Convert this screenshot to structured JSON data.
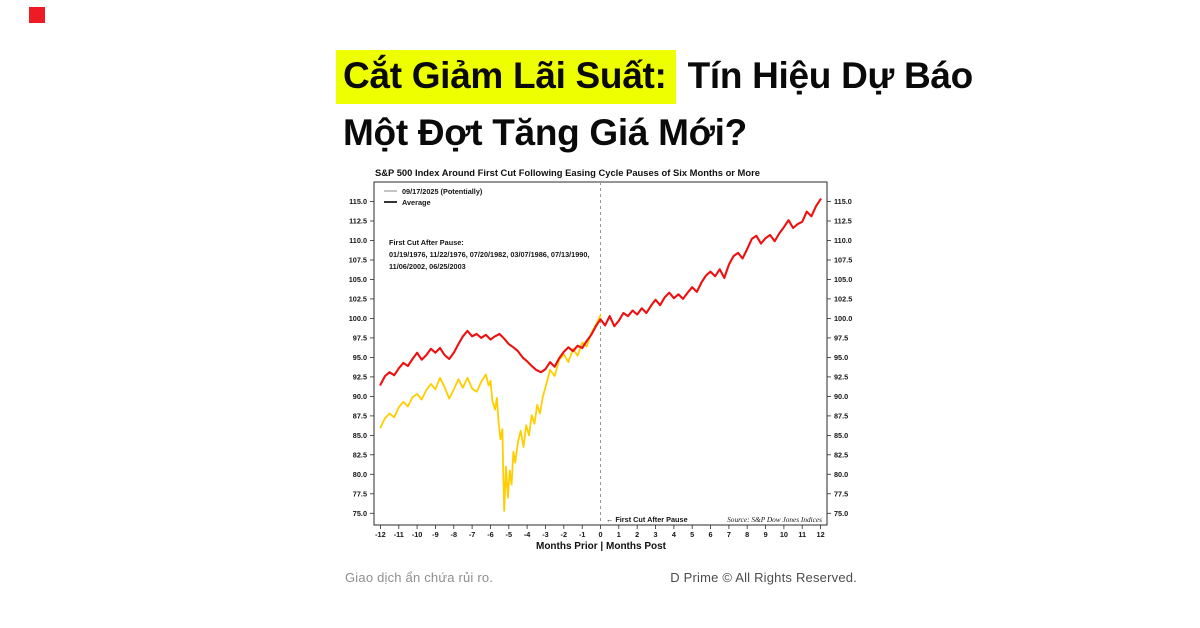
{
  "brand": {
    "logo_color": "#ed1c24"
  },
  "headline": {
    "highlight": "Cắt Giảm Lãi Suất:",
    "rest_line1": "Tín Hiệu Dự Báo",
    "line2": "Một Đợt Tăng Giá Mới?",
    "highlight_color": "#eeff00",
    "text_color": "#0a0a0a"
  },
  "footer": {
    "left": "Giao dịch ẩn chứa rủi ro.",
    "right": "D Prime © All Rights Reserved."
  },
  "chart_data": {
    "type": "line",
    "title": "S&P 500 Index Around First Cut Following Easing Cycle Pauses of Six Months or More",
    "xlabel": "Months Prior | Months Post",
    "ylabel": "",
    "grid": false,
    "legend_position": "top-left",
    "xlim": [
      -12.35,
      12.35
    ],
    "ylim": [
      73.5,
      117.5
    ],
    "xticks": [
      -12,
      -11,
      -10,
      -9,
      -8,
      -7,
      -6,
      -5,
      -4,
      -3,
      -2,
      -1,
      0,
      1,
      2,
      3,
      4,
      5,
      6,
      7,
      8,
      9,
      10,
      11,
      12
    ],
    "yticks": [
      75.0,
      77.5,
      80.0,
      82.5,
      85.0,
      87.5,
      90.0,
      92.5,
      95.0,
      97.5,
      100.0,
      102.5,
      105.0,
      107.5,
      110.0,
      112.5,
      115.0
    ],
    "vline_x": 0,
    "event_annotation": "←  First Cut After Pause",
    "source": "Source:  S&P Dow Jones Indices",
    "annotation": [
      "First Cut After Pause:",
      "01/19/1976, 11/22/1976, 07/20/1982, 03/07/1986, 07/13/1990,",
      "11/06/2002, 06/25/2003"
    ],
    "legend": [
      {
        "label": "09/17/2025 (Potentially)",
        "color": "#b5b5b5"
      },
      {
        "label": "Average",
        "color": "#1f1f1f"
      }
    ],
    "series": [
      {
        "name": "09/17/2025 (Potentially)",
        "color": "#ffce00",
        "width": 1.8,
        "points": [
          [
            -12,
            86
          ],
          [
            -11.75,
            87.2
          ],
          [
            -11.5,
            87.8
          ],
          [
            -11.25,
            87.3
          ],
          [
            -11,
            88.6
          ],
          [
            -10.75,
            89.3
          ],
          [
            -10.5,
            88.7
          ],
          [
            -10.25,
            89.9
          ],
          [
            -10,
            90.3
          ],
          [
            -9.75,
            89.6
          ],
          [
            -9.5,
            90.8
          ],
          [
            -9.25,
            91.6
          ],
          [
            -9,
            90.9
          ],
          [
            -8.75,
            92.4
          ],
          [
            -8.5,
            91.2
          ],
          [
            -8.25,
            89.7
          ],
          [
            -8,
            90.9
          ],
          [
            -7.75,
            92.2
          ],
          [
            -7.5,
            91.1
          ],
          [
            -7.25,
            92.4
          ],
          [
            -7,
            91
          ],
          [
            -6.75,
            90.6
          ],
          [
            -6.5,
            91.9
          ],
          [
            -6.25,
            92.8
          ],
          [
            -6.1,
            91.4
          ],
          [
            -6,
            92
          ],
          [
            -5.9,
            89.5
          ],
          [
            -5.75,
            88.3
          ],
          [
            -5.65,
            89.8
          ],
          [
            -5.55,
            86.5
          ],
          [
            -5.45,
            84.5
          ],
          [
            -5.35,
            85.8
          ],
          [
            -5.3,
            80
          ],
          [
            -5.25,
            75.3
          ],
          [
            -5.15,
            81
          ],
          [
            -5.05,
            77
          ],
          [
            -4.95,
            80.5
          ],
          [
            -4.85,
            78.7
          ],
          [
            -4.75,
            82.9
          ],
          [
            -4.65,
            81.5
          ],
          [
            -4.5,
            84.2
          ],
          [
            -4.35,
            85.6
          ],
          [
            -4.2,
            83.5
          ],
          [
            -4.05,
            86.3
          ],
          [
            -3.9,
            85
          ],
          [
            -3.75,
            87.6
          ],
          [
            -3.6,
            86.5
          ],
          [
            -3.45,
            88.9
          ],
          [
            -3.3,
            87.8
          ],
          [
            -3.15,
            89.9
          ],
          [
            -3,
            91.2
          ],
          [
            -2.75,
            93.4
          ],
          [
            -2.5,
            92.6
          ],
          [
            -2.25,
            94.7
          ],
          [
            -2,
            95.4
          ],
          [
            -1.75,
            94.4
          ],
          [
            -1.5,
            96.1
          ],
          [
            -1.25,
            95.2
          ],
          [
            -1,
            96.9
          ],
          [
            -0.75,
            96.4
          ],
          [
            -0.5,
            98.1
          ],
          [
            -0.25,
            99.2
          ],
          [
            0,
            100.4
          ]
        ]
      },
      {
        "name": "Average",
        "color": "#ee1010",
        "width": 2.1,
        "points": [
          [
            -12,
            91.5
          ],
          [
            -11.75,
            92.6
          ],
          [
            -11.5,
            93.1
          ],
          [
            -11.25,
            92.7
          ],
          [
            -11,
            93.6
          ],
          [
            -10.75,
            94.3
          ],
          [
            -10.5,
            93.9
          ],
          [
            -10.25,
            94.8
          ],
          [
            -10,
            95.6
          ],
          [
            -9.75,
            94.7
          ],
          [
            -9.5,
            95.3
          ],
          [
            -9.25,
            96.1
          ],
          [
            -9,
            95.6
          ],
          [
            -8.75,
            96.2
          ],
          [
            -8.5,
            95.3
          ],
          [
            -8.25,
            94.8
          ],
          [
            -8,
            95.6
          ],
          [
            -7.75,
            96.7
          ],
          [
            -7.5,
            97.7
          ],
          [
            -7.25,
            98.4
          ],
          [
            -7,
            97.7
          ],
          [
            -6.75,
            98
          ],
          [
            -6.5,
            97.5
          ],
          [
            -6.25,
            97.9
          ],
          [
            -6,
            97.3
          ],
          [
            -5.75,
            97.7
          ],
          [
            -5.5,
            98
          ],
          [
            -5.25,
            97.4
          ],
          [
            -5,
            96.7
          ],
          [
            -4.75,
            96.3
          ],
          [
            -4.5,
            95.8
          ],
          [
            -4.25,
            95
          ],
          [
            -4,
            94.5
          ],
          [
            -3.75,
            93.9
          ],
          [
            -3.5,
            93.4
          ],
          [
            -3.25,
            93.1
          ],
          [
            -3,
            93.5
          ],
          [
            -2.75,
            94.4
          ],
          [
            -2.5,
            93.8
          ],
          [
            -2.25,
            94.9
          ],
          [
            -2,
            95.7
          ],
          [
            -1.75,
            96.3
          ],
          [
            -1.5,
            95.8
          ],
          [
            -1.25,
            96.5
          ],
          [
            -1,
            96.2
          ],
          [
            -0.75,
            97.1
          ],
          [
            -0.5,
            97.9
          ],
          [
            -0.25,
            99
          ],
          [
            0,
            99.9
          ],
          [
            0.25,
            99.1
          ],
          [
            0.5,
            100.3
          ],
          [
            0.75,
            99
          ],
          [
            1,
            99.7
          ],
          [
            1.25,
            100.7
          ],
          [
            1.5,
            100.3
          ],
          [
            1.75,
            101
          ],
          [
            2,
            100.5
          ],
          [
            2.25,
            101.3
          ],
          [
            2.5,
            100.7
          ],
          [
            2.75,
            101.6
          ],
          [
            3,
            102.4
          ],
          [
            3.25,
            101.7
          ],
          [
            3.5,
            102.7
          ],
          [
            3.75,
            103.3
          ],
          [
            4,
            102.6
          ],
          [
            4.25,
            103.1
          ],
          [
            4.5,
            102.5
          ],
          [
            4.75,
            103.3
          ],
          [
            5,
            104
          ],
          [
            5.25,
            103.4
          ],
          [
            5.5,
            104.6
          ],
          [
            5.75,
            105.5
          ],
          [
            6,
            106
          ],
          [
            6.25,
            105.4
          ],
          [
            6.5,
            106.3
          ],
          [
            6.75,
            105.2
          ],
          [
            7,
            106.9
          ],
          [
            7.25,
            108
          ],
          [
            7.5,
            108.4
          ],
          [
            7.75,
            107.7
          ],
          [
            8,
            108.9
          ],
          [
            8.25,
            110.2
          ],
          [
            8.5,
            110.6
          ],
          [
            8.75,
            109.6
          ],
          [
            9,
            110.3
          ],
          [
            9.25,
            110.7
          ],
          [
            9.5,
            109.9
          ],
          [
            9.75,
            110.9
          ],
          [
            10,
            111.7
          ],
          [
            10.25,
            112.6
          ],
          [
            10.5,
            111.6
          ],
          [
            10.75,
            112.1
          ],
          [
            11,
            112.4
          ],
          [
            11.25,
            113.7
          ],
          [
            11.5,
            113.1
          ],
          [
            11.75,
            114.4
          ],
          [
            12,
            115.3
          ]
        ]
      }
    ]
  }
}
